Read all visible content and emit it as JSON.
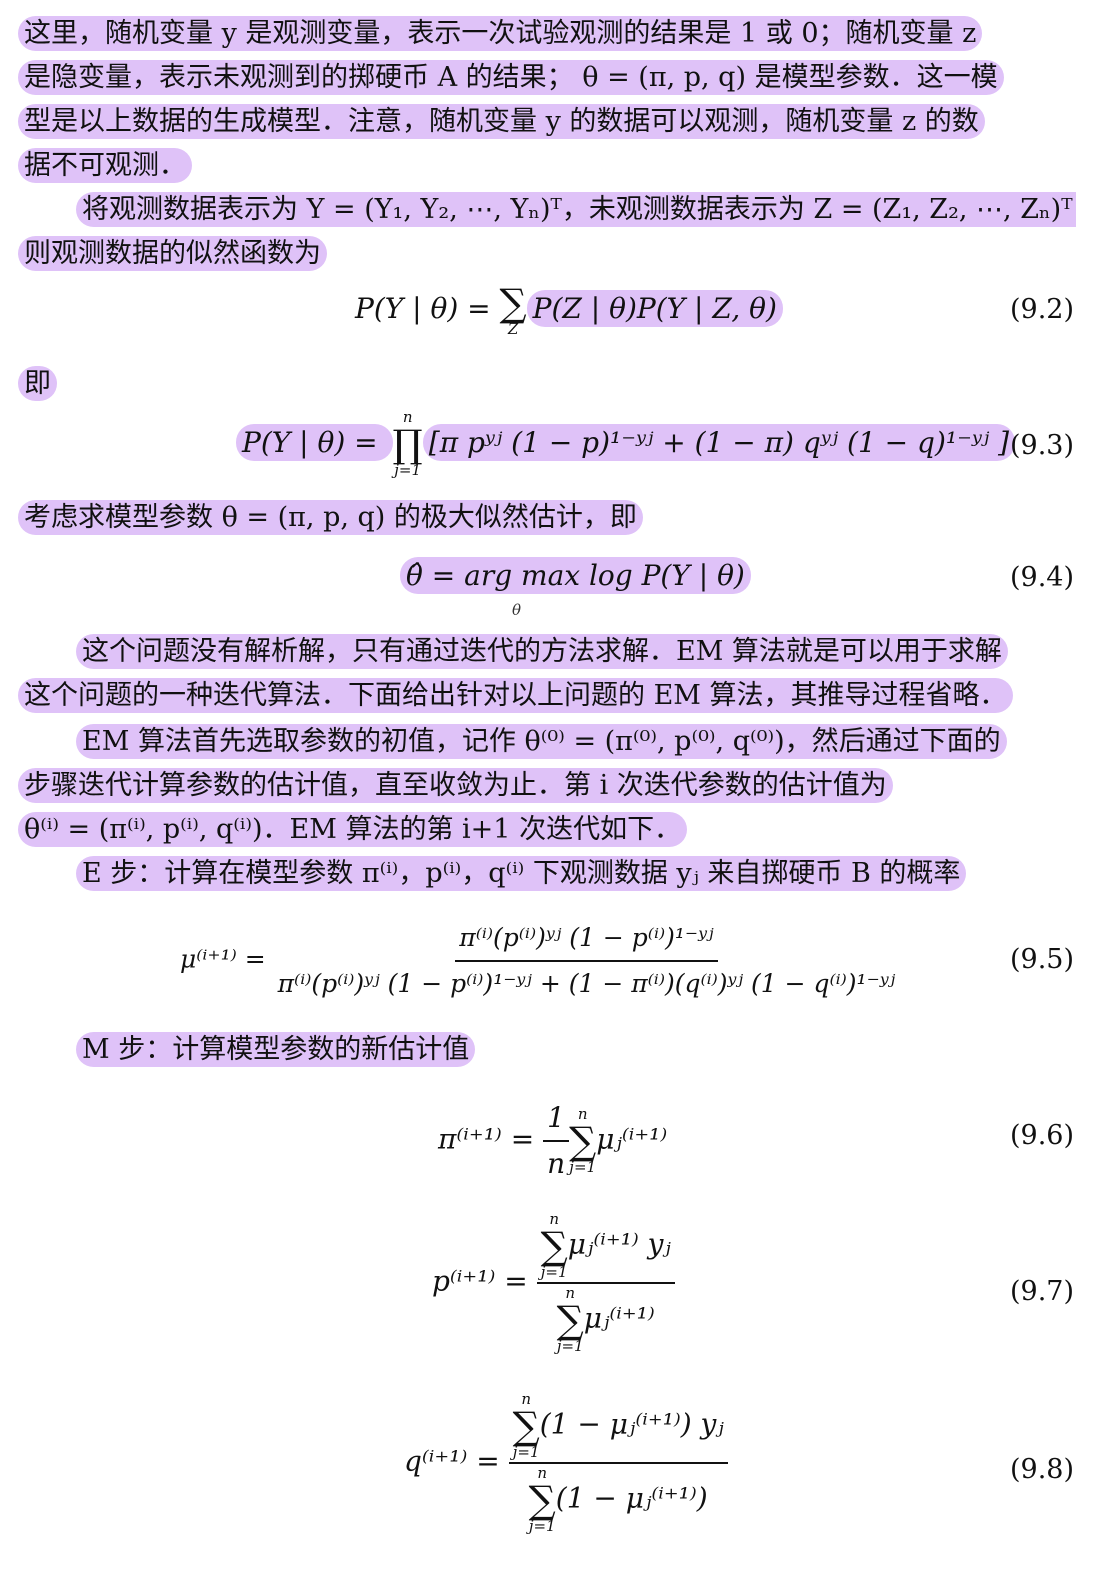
{
  "colors": {
    "highlight": "#b978f0",
    "text": "#111111",
    "background": "#ffffff"
  },
  "paragraphs": {
    "p1_l1": "这里，随机变量 y 是观测变量，表示一次试验观测的结果是 1 或 0；随机变量 z",
    "p1_l2": "是隐变量，表示未观测到的掷硬币 A 的结果； θ = (π, p, q) 是模型参数．这一模",
    "p1_l3": "型是以上数据的生成模型．注意，随机变量 y 的数据可以观测，随机变量 z 的数",
    "p1_l4": "据不可观测．",
    "p2_l1": "将观测数据表示为 Y = (Y₁, Y₂, ⋯, Yₙ)ᵀ，未观测数据表示为 Z = (Z₁, Z₂, ⋯, Zₙ)ᵀ，",
    "p2_l2": "则观测数据的似然函数为",
    "ji": "即",
    "p3": "考虑求模型参数 θ = (π, p, q) 的极大似然估计，即",
    "p4_l1": "这个问题没有解析解，只有通过迭代的方法求解．EM 算法就是可以用于求解",
    "p4_l2": "这个问题的一种迭代算法．下面给出针对以上问题的 EM 算法，其推导过程省略．",
    "p5_l1": "EM 算法首先选取参数的初值，记作 θ⁽⁰⁾ = (π⁽⁰⁾, p⁽⁰⁾, q⁽⁰⁾)，然后通过下面的",
    "p5_l2": "步骤迭代计算参数的估计值，直至收敛为止．第 i 次迭代参数的估计值为",
    "p5_l3": "θ⁽ⁱ⁾ = (π⁽ⁱ⁾, p⁽ⁱ⁾, q⁽ⁱ⁾)．EM 算法的第 i+1 次迭代如下．",
    "e_step": "E 步：计算在模型参数 π⁽ⁱ⁾，p⁽ⁱ⁾，q⁽ⁱ⁾ 下观测数据 yⱼ 来自掷硬币 B 的概率",
    "m_step": "M 步：计算模型参数的新估计值"
  },
  "equations": {
    "eq92": {
      "number": "(9.2)",
      "lhs": "P(Y | θ) = ",
      "sum_lower": "Z",
      "rhs": "P(Z | θ)P(Y | Z, θ)"
    },
    "eq93": {
      "number": "(9.3)",
      "lhs": "P(Y | θ) = ",
      "prod_upper": "n",
      "prod_lower": "j=1",
      "rhs": "[π pʸʲ (1 − p)¹⁻ʸʲ + (1 − π) qʸʲ (1 − q)¹⁻ʸʲ ]"
    },
    "eq94": {
      "number": "(9.4)",
      "text": "θ̂ = arg max log P(Y | θ)",
      "sub": "θ"
    },
    "eq95": {
      "number": "(9.5)",
      "lhs": "μ⁽ⁱ⁺¹⁾ = ",
      "num": "π⁽ⁱ⁾(p⁽ⁱ⁾)ʸʲ (1 − p⁽ⁱ⁾)¹⁻ʸʲ",
      "den": "π⁽ⁱ⁾(p⁽ⁱ⁾)ʸʲ (1 − p⁽ⁱ⁾)¹⁻ʸʲ + (1 − π⁽ⁱ⁾)(q⁽ⁱ⁾)ʸʲ (1 − q⁽ⁱ⁾)¹⁻ʸʲ"
    },
    "eq96": {
      "number": "(9.6)",
      "lhs": "π⁽ⁱ⁺¹⁾ = ",
      "frac_num": "1",
      "frac_den": "n",
      "sum_upper": "n",
      "sum_lower": "j=1",
      "term": "μⱼ⁽ⁱ⁺¹⁾"
    },
    "eq97": {
      "number": "(9.7)",
      "lhs": "p⁽ⁱ⁺¹⁾ = ",
      "sum_upper": "n",
      "sum_lower": "j=1",
      "num_term": "μⱼ⁽ⁱ⁺¹⁾ yⱼ",
      "den_term": "μⱼ⁽ⁱ⁺¹⁾"
    },
    "eq98": {
      "number": "(9.8)",
      "lhs": "q⁽ⁱ⁺¹⁾ = ",
      "sum_upper": "n",
      "sum_lower": "j=1",
      "num_term": "(1 − μⱼ⁽ⁱ⁺¹⁾) yⱼ",
      "den_term": "(1 − μⱼ⁽ⁱ⁺¹⁾)"
    }
  }
}
